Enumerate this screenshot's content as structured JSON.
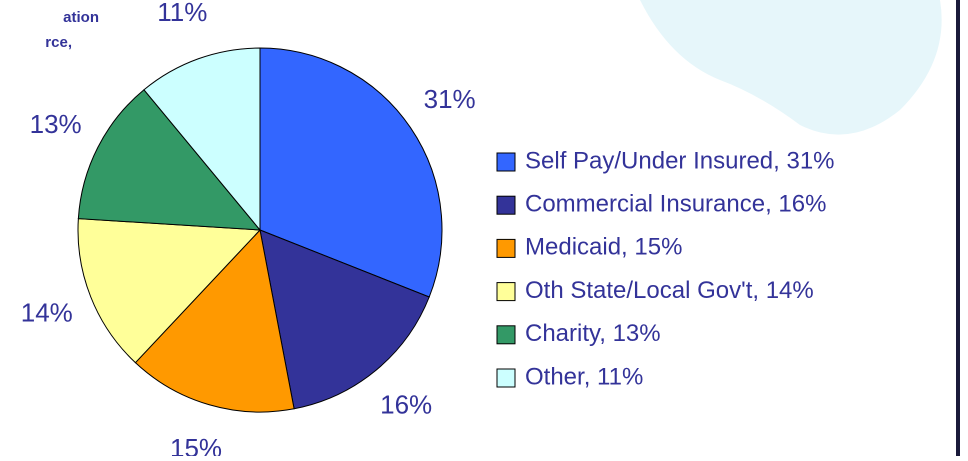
{
  "chart_data": {
    "type": "pie",
    "annotations": [
      "ation",
      "rce,"
    ],
    "categories": [
      "Self Pay/Under Insured, 31%",
      "Commercial Insurance, 16%",
      "Medicaid, 15%",
      "Oth State/Local Gov't, 14%",
      "Charity, 13%",
      "Other, 11%"
    ],
    "values": [
      31,
      16,
      15,
      14,
      13,
      11
    ],
    "value_labels": [
      "31%",
      "16%",
      "15%",
      "14%",
      "13%",
      "11%"
    ],
    "colors": [
      "#3366ff",
      "#333399",
      "#ff9900",
      "#ffff99",
      "#339966",
      "#ccffff"
    ],
    "legend": "right"
  }
}
